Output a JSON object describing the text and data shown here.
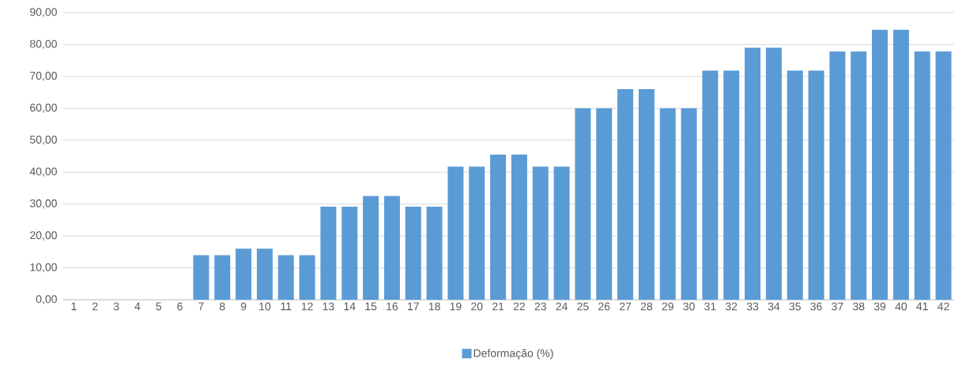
{
  "chart_data": {
    "type": "bar",
    "categories": [
      "1",
      "2",
      "3",
      "4",
      "5",
      "6",
      "7",
      "8",
      "9",
      "10",
      "11",
      "12",
      "13",
      "14",
      "15",
      "16",
      "17",
      "18",
      "19",
      "20",
      "21",
      "22",
      "23",
      "24",
      "25",
      "26",
      "27",
      "28",
      "29",
      "30",
      "31",
      "32",
      "33",
      "34",
      "35",
      "36",
      "37",
      "38",
      "39",
      "40",
      "41",
      "42"
    ],
    "series": [
      {
        "name": "Deformação (%)",
        "color": "#5b9bd5",
        "values": [
          0,
          0,
          0,
          0,
          0,
          0,
          14,
          14,
          16,
          16,
          14,
          14,
          29.2,
          29.2,
          32.5,
          32.5,
          29.2,
          29.2,
          41.7,
          41.7,
          45.5,
          45.5,
          41.7,
          41.7,
          60,
          60,
          66,
          66,
          60,
          60,
          71.8,
          71.8,
          79,
          79,
          71.8,
          71.8,
          77.8,
          77.8,
          84.6,
          84.6,
          77.8,
          77.8
        ]
      }
    ],
    "ylim": [
      0,
      90
    ],
    "yticks": [
      {
        "value": 0,
        "label": "0,00"
      },
      {
        "value": 10,
        "label": "10,00"
      },
      {
        "value": 20,
        "label": "20,00"
      },
      {
        "value": 30,
        "label": "30,00"
      },
      {
        "value": 40,
        "label": "40,00"
      },
      {
        "value": 50,
        "label": "50,00"
      },
      {
        "value": 60,
        "label": "60,00"
      },
      {
        "value": 70,
        "label": "70,00"
      },
      {
        "value": 80,
        "label": "80,00"
      },
      {
        "value": 90,
        "label": "90,00"
      }
    ],
    "grid": "y",
    "legend": "bottom"
  }
}
